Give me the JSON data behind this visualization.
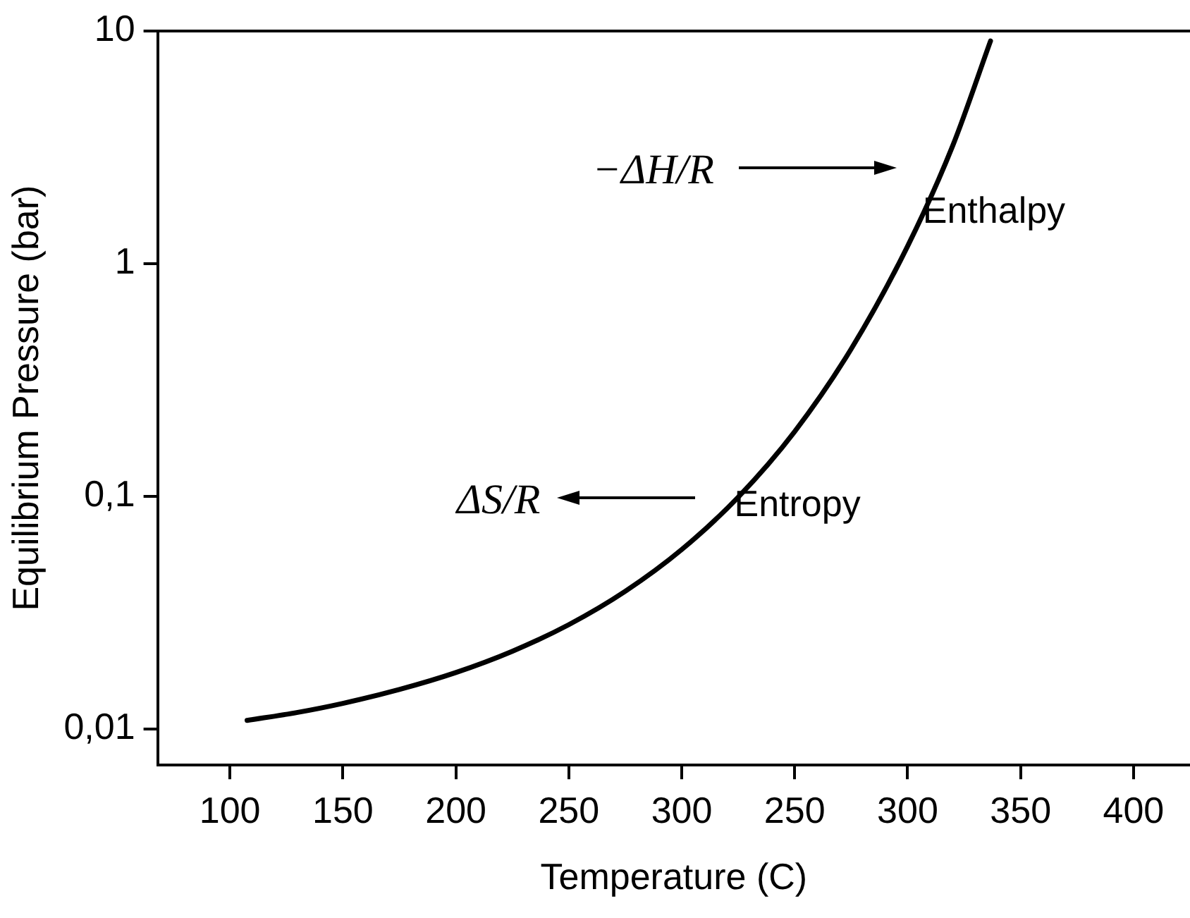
{
  "chart_data": {
    "type": "line",
    "xlabel": "Temperature (C)",
    "ylabel": "Equilibrium Pressure (bar)",
    "log": "y",
    "grid": false,
    "legend": false,
    "marker": "none",
    "line_style": "solid",
    "xlim": [
      68,
      525
    ],
    "ylim": [
      0.007,
      10
    ],
    "xticks": [
      100,
      150,
      200,
      250,
      300
    ],
    "x2lim": [
      -32,
      425
    ],
    "x2ticks": [
      250,
      300,
      350,
      400
    ],
    "yticks": [
      {
        "value": 0.01,
        "label": "0,01"
      },
      {
        "value": 0.1,
        "label": "0,1"
      },
      1,
      10
    ],
    "series": [
      {
        "color": "#000000",
        "x": [
          107.6,
          130,
          150,
          175,
          200,
          225,
          250,
          275,
          300,
          325,
          350,
          375,
          400,
          420,
          436.7
        ],
        "values": [
          0.0109,
          0.0118,
          0.0129,
          0.0148,
          0.0175,
          0.0216,
          0.0281,
          0.0391,
          0.0591,
          0.0993,
          0.19,
          0.43,
          1.19,
          3.22,
          9.06
        ]
      }
    ],
    "annotations": [
      "−ΔH/R",
      "Enthalpy",
      "ΔS/R",
      "Entropy"
    ]
  }
}
